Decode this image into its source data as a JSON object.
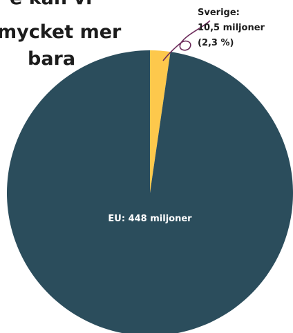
{
  "chart_data": {
    "type": "pie",
    "title_lines": [
      "e kan vi",
      "mycket mer",
      "bara"
    ],
    "slices": [
      {
        "name": "Sverige",
        "value": 10.5,
        "color": "#fdc84c",
        "labels": [
          "Sverige:",
          "10,5 miljoner",
          "(2,3 %)"
        ]
      },
      {
        "name": "EU",
        "value": 448,
        "color": "#2b4d5c",
        "labels": [
          "EU: 448 miljoner"
        ]
      }
    ]
  }
}
